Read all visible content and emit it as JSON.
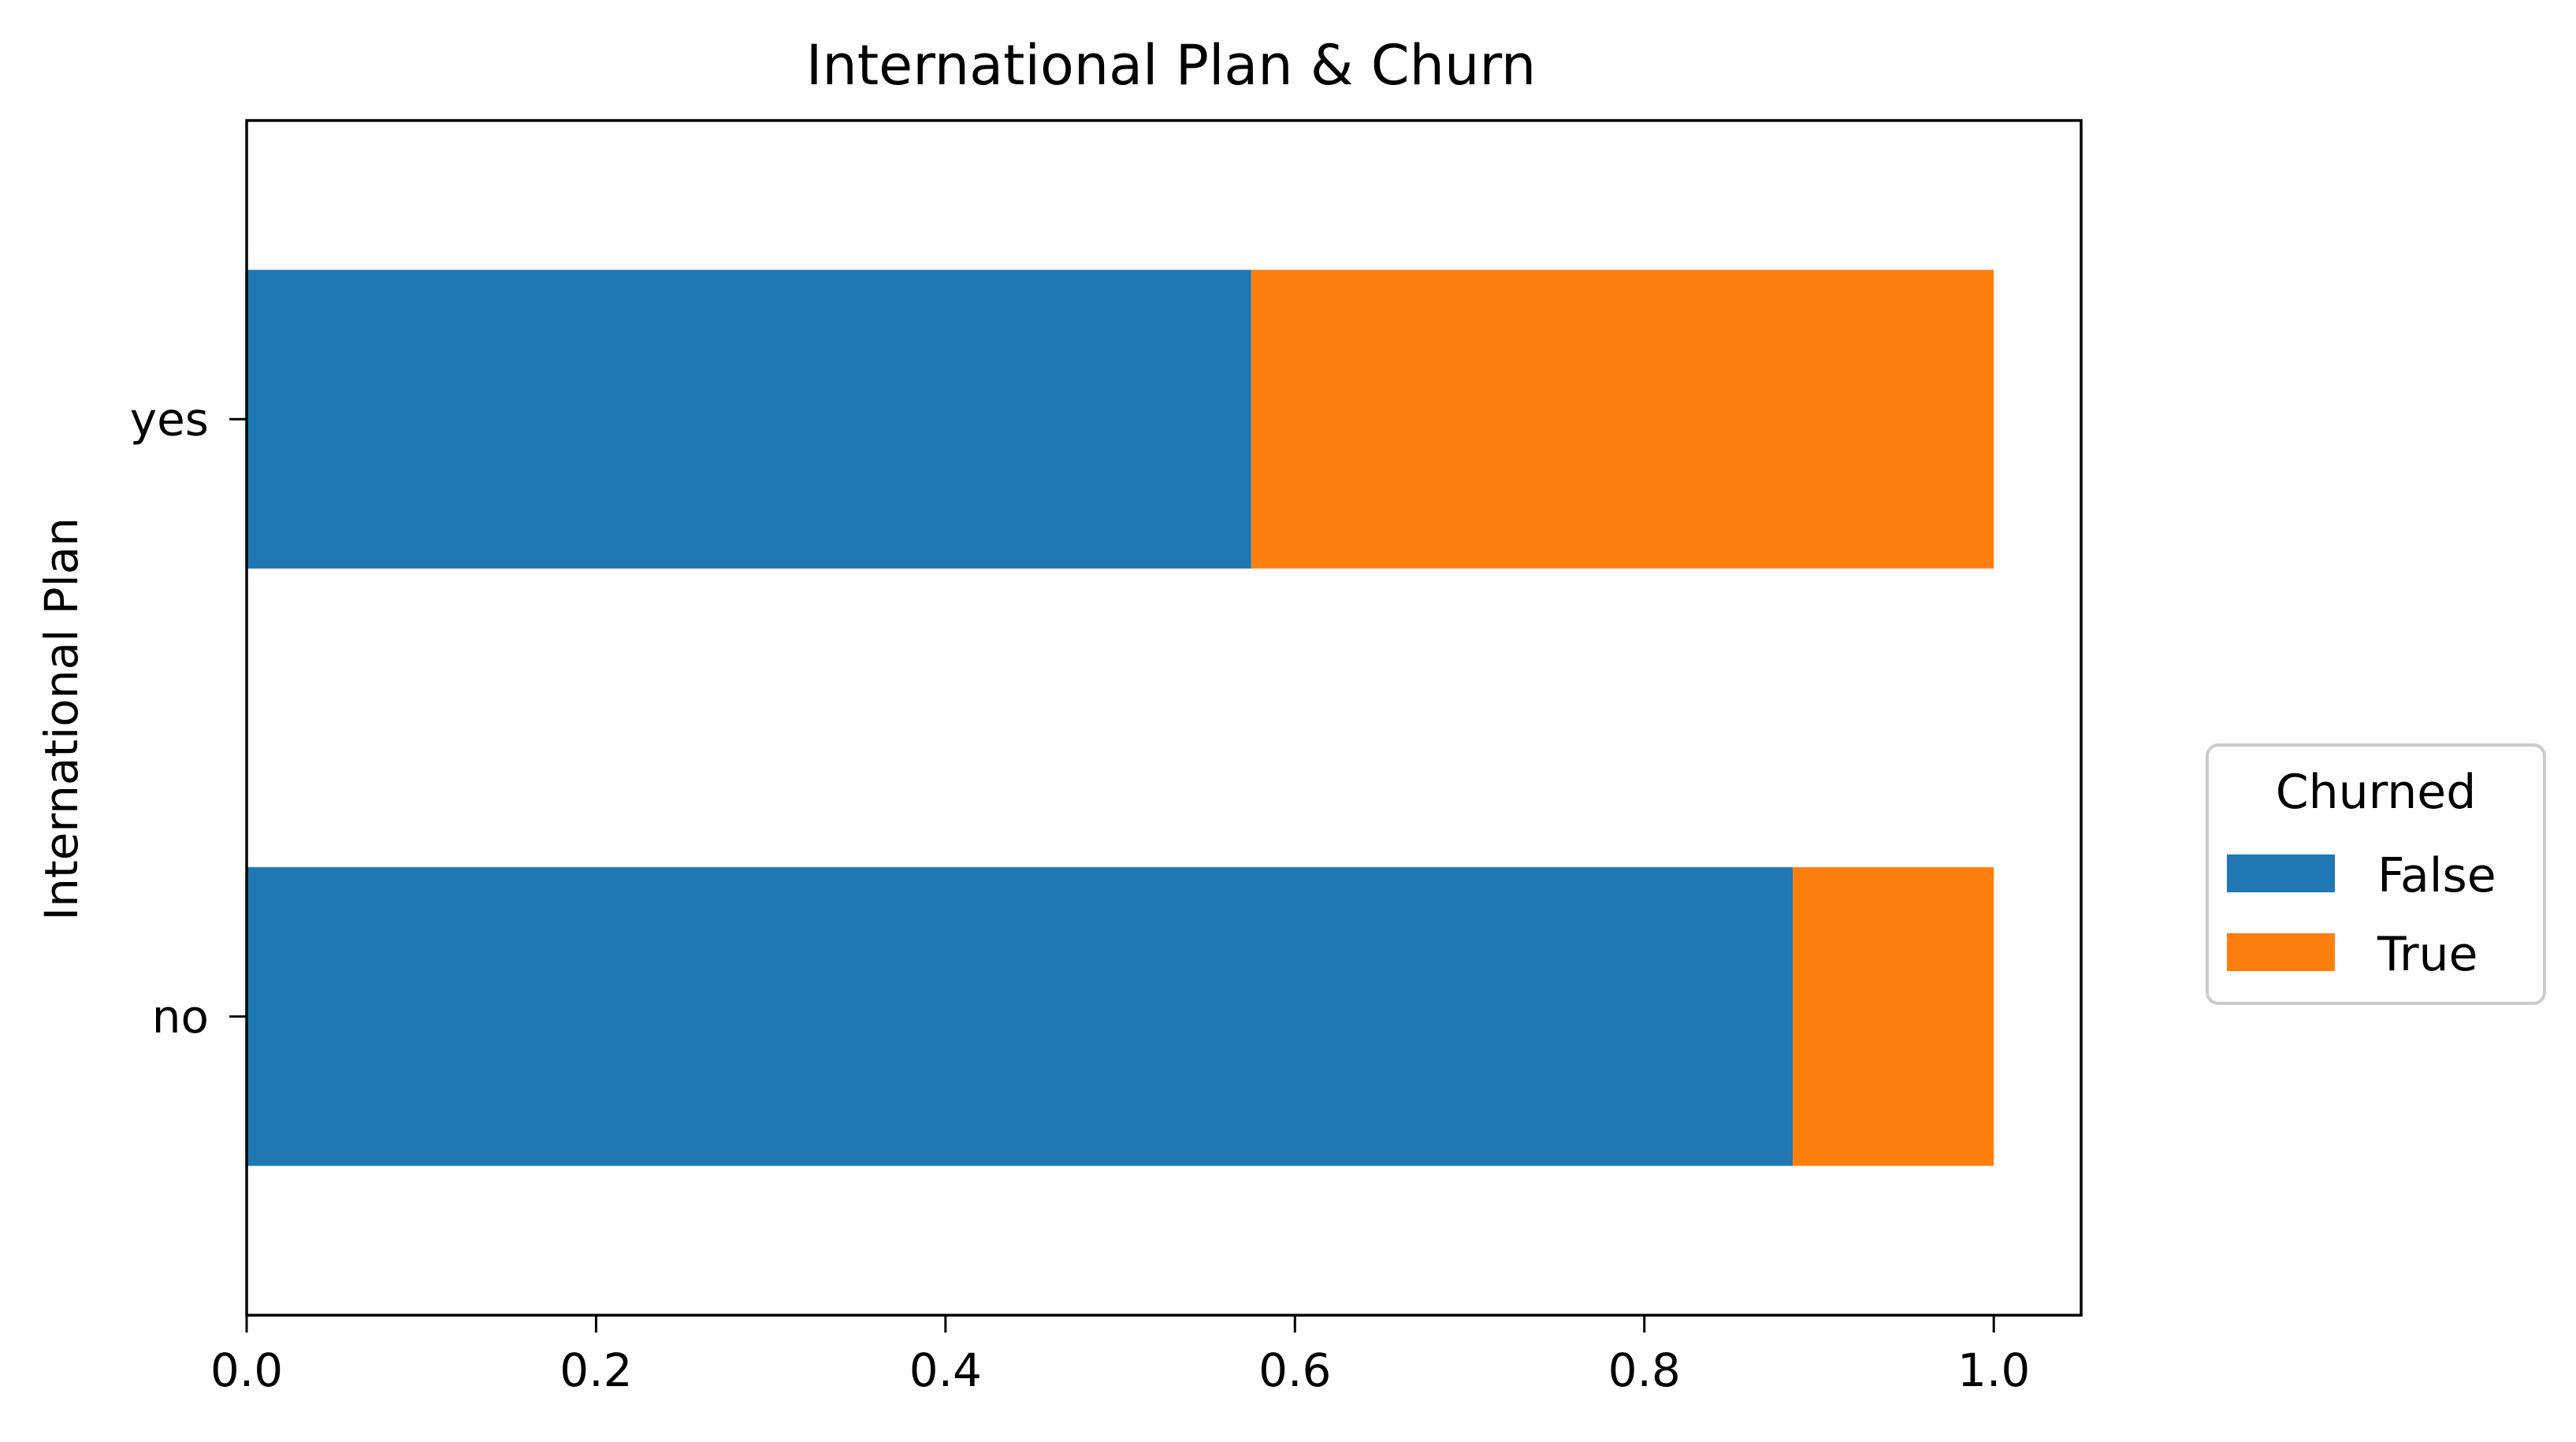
{
  "chart_data": {
    "type": "bar",
    "orientation": "horizontal",
    "stacked": true,
    "title": "International Plan & Churn",
    "xlabel": "",
    "ylabel": "International Plan",
    "categories": [
      "no",
      "yes"
    ],
    "series": [
      {
        "name": "False",
        "values": [
          0.885,
          0.575
        ],
        "color": "#1f77b4"
      },
      {
        "name": "True",
        "values": [
          0.115,
          0.425
        ],
        "color": "#ff7f0e"
      }
    ],
    "xlim": [
      0.0,
      1.05
    ],
    "xticks": [
      "0.0",
      "0.2",
      "0.4",
      "0.6",
      "0.8",
      "1.0"
    ],
    "grid": false,
    "legend": {
      "title": "Churned",
      "placement": "outside-right"
    }
  }
}
